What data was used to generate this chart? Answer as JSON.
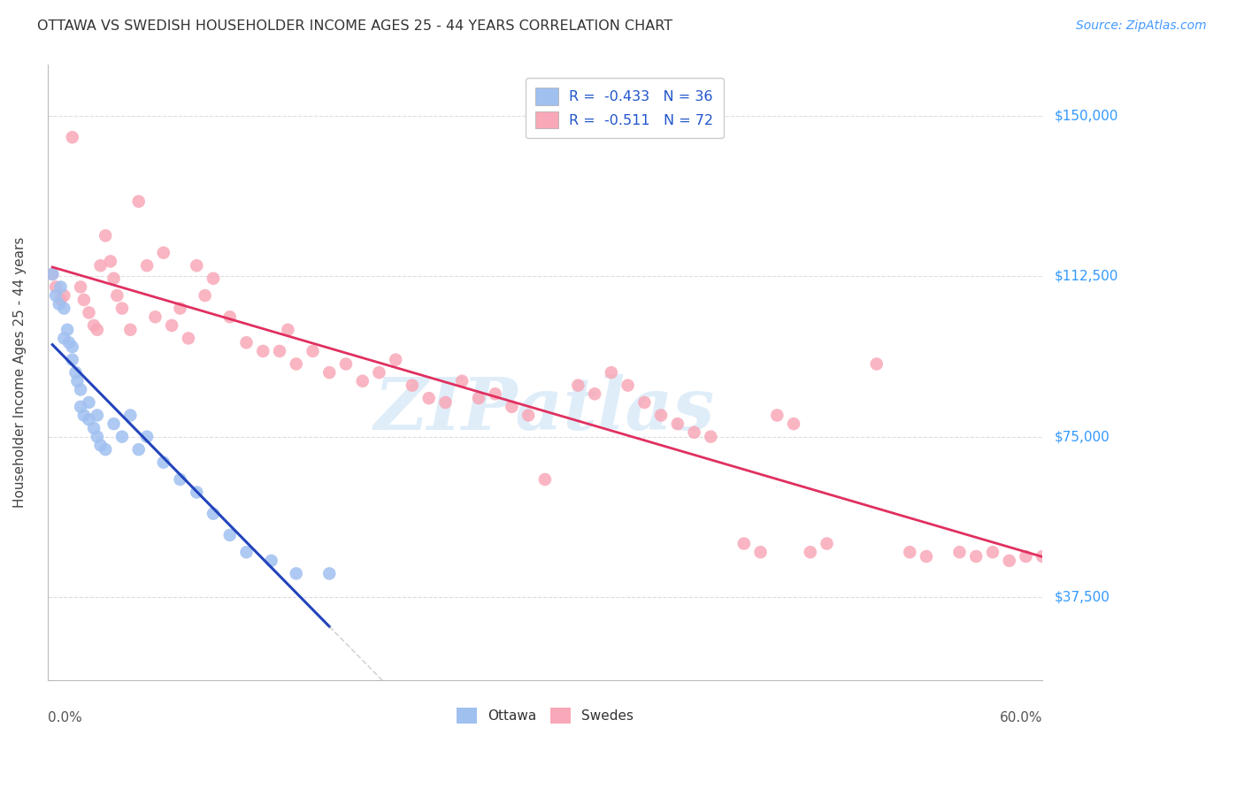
{
  "title": "OTTAWA VS SWEDISH HOUSEHOLDER INCOME AGES 25 - 44 YEARS CORRELATION CHART",
  "source": "Source: ZipAtlas.com",
  "ylabel": "Householder Income Ages 25 - 44 years",
  "yticks": [
    37500,
    75000,
    112500,
    150000
  ],
  "ytick_labels": [
    "$37,500",
    "$75,000",
    "$112,500",
    "$150,000"
  ],
  "xmin": 0.0,
  "xmax": 60.0,
  "ymin": 18000,
  "ymax": 162000,
  "watermark": "ZIPatlas",
  "legend_r_ottawa": "-0.433",
  "legend_n_ottawa": "36",
  "legend_r_swedes": "-0.511",
  "legend_n_swedes": "72",
  "ottawa_color": "#a0c0f0",
  "swedes_color": "#f8a8b8",
  "ottawa_line_color": "#2244bb",
  "swedes_line_color": "#e03060",
  "ottawa_scatter_x": [
    0.3,
    0.5,
    0.7,
    0.8,
    1.0,
    1.0,
    1.2,
    1.3,
    1.5,
    1.5,
    1.7,
    1.8,
    2.0,
    2.0,
    2.2,
    2.5,
    2.5,
    2.8,
    3.0,
    3.0,
    3.2,
    3.5,
    4.0,
    4.5,
    5.0,
    5.5,
    6.0,
    7.0,
    8.0,
    9.0,
    10.0,
    11.0,
    12.0,
    13.5,
    15.0,
    17.0
  ],
  "ottawa_scatter_y": [
    113000,
    108000,
    106000,
    110000,
    98000,
    105000,
    100000,
    97000,
    96000,
    93000,
    90000,
    88000,
    86000,
    82000,
    80000,
    83000,
    79000,
    77000,
    80000,
    75000,
    73000,
    72000,
    78000,
    75000,
    80000,
    72000,
    75000,
    69000,
    65000,
    62000,
    57000,
    52000,
    48000,
    46000,
    43000,
    43000
  ],
  "swedes_scatter_x": [
    0.3,
    0.5,
    0.8,
    1.0,
    1.5,
    2.0,
    2.2,
    2.5,
    2.8,
    3.0,
    3.2,
    3.5,
    3.8,
    4.0,
    4.2,
    4.5,
    5.0,
    5.5,
    6.0,
    6.5,
    7.0,
    7.5,
    8.0,
    8.5,
    9.0,
    9.5,
    10.0,
    11.0,
    12.0,
    13.0,
    14.0,
    14.5,
    15.0,
    16.0,
    17.0,
    18.0,
    19.0,
    20.0,
    21.0,
    22.0,
    23.0,
    24.0,
    25.0,
    26.0,
    27.0,
    28.0,
    29.0,
    30.0,
    32.0,
    33.0,
    34.0,
    35.0,
    36.0,
    37.0,
    38.0,
    39.0,
    40.0,
    42.0,
    43.0,
    44.0,
    45.0,
    46.0,
    47.0,
    50.0,
    52.0,
    53.0,
    55.0,
    56.0,
    57.0,
    58.0,
    59.0,
    60.0
  ],
  "swedes_scatter_y": [
    113000,
    110000,
    107000,
    108000,
    145000,
    110000,
    107000,
    104000,
    101000,
    100000,
    115000,
    122000,
    116000,
    112000,
    108000,
    105000,
    100000,
    130000,
    115000,
    103000,
    118000,
    101000,
    105000,
    98000,
    115000,
    108000,
    112000,
    103000,
    97000,
    95000,
    95000,
    100000,
    92000,
    95000,
    90000,
    92000,
    88000,
    90000,
    93000,
    87000,
    84000,
    83000,
    88000,
    84000,
    85000,
    82000,
    80000,
    65000,
    87000,
    85000,
    90000,
    87000,
    83000,
    80000,
    78000,
    76000,
    75000,
    50000,
    48000,
    80000,
    78000,
    48000,
    50000,
    92000,
    48000,
    47000,
    48000,
    47000,
    48000,
    46000,
    47000,
    47000
  ],
  "background_color": "#ffffff",
  "grid_color": "#dddddd"
}
